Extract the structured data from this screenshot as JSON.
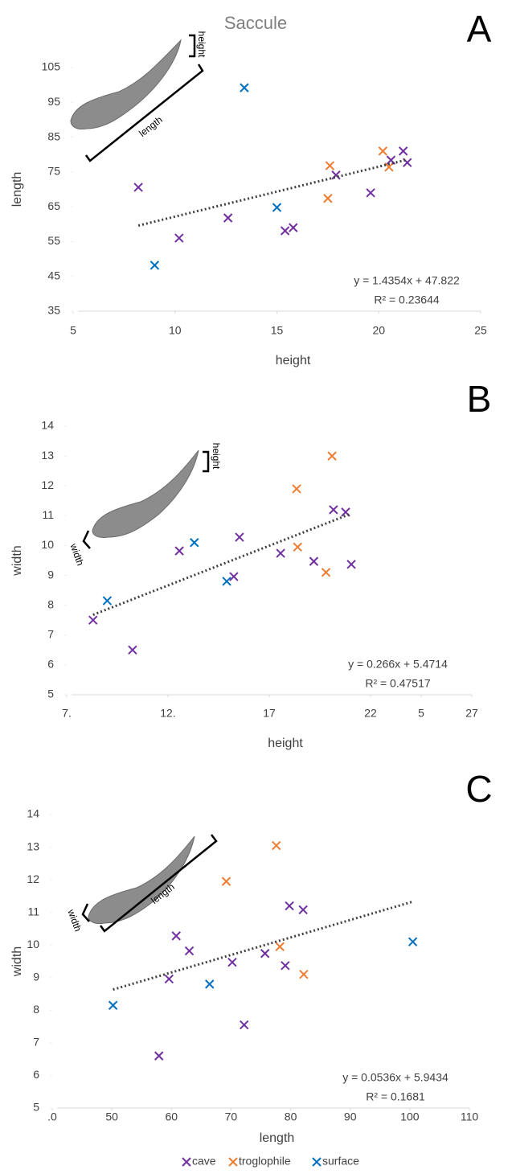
{
  "chart_data": [
    {
      "type": "scatter",
      "title": "Saccule",
      "panel": "A",
      "xlabel": "height",
      "ylabel": "length",
      "xlim": [
        5,
        25
      ],
      "ylim": [
        35,
        105
      ],
      "xticks": [
        5,
        10,
        15,
        20,
        25
      ],
      "yticks": [
        35,
        45,
        55,
        65,
        75,
        85,
        95,
        105
      ],
      "annotations": [
        "height",
        "length"
      ],
      "series": [
        {
          "name": "cave",
          "color": "#7030a0",
          "x": [
            8.2,
            10.2,
            12.6,
            15.4,
            15.8,
            17.9,
            19.6,
            20.6,
            21.2,
            21.4
          ],
          "y": [
            70.6,
            56,
            61.8,
            58.1,
            59,
            74.1,
            69,
            78.4,
            81,
            77.7
          ]
        },
        {
          "name": "troglophile",
          "color": "#ed7d31",
          "x": [
            17.6,
            17.5,
            20.2,
            20.5
          ],
          "y": [
            76.8,
            67.4,
            81,
            76.4
          ]
        },
        {
          "name": "surface",
          "color": "#0070c0",
          "x": [
            13.4,
            15,
            9
          ],
          "y": [
            99.2,
            64.8,
            48.2
          ]
        }
      ],
      "trendline": {
        "slope": 1.4354,
        "intercept": 47.822,
        "equation": "y = 1.4354x + 47.822",
        "r2": "R² = 0.23644"
      }
    },
    {
      "type": "scatter",
      "panel": "B",
      "xlabel": "height",
      "ylabel": "width",
      "xlim": [
        7,
        27
      ],
      "ylim": [
        5,
        14
      ],
      "xticks": [
        {
          "value": 7,
          "label": "7."
        },
        {
          "value": 12,
          "label": "12."
        },
        17,
        22,
        {
          "value": 24.5,
          "label": "5"
        },
        27
      ],
      "yticks": [
        5,
        6,
        7,
        8,
        9,
        10,
        11,
        12,
        13,
        14
      ],
      "annotations": [
        "height",
        "width"
      ],
      "series": [
        {
          "name": "cave",
          "color": "#7030a0",
          "x": [
            8.3,
            10.25,
            12.56,
            15.25,
            15.53,
            17.56,
            19.2,
            20.17,
            20.77,
            21.05
          ],
          "y": [
            7.5,
            6.5,
            9.82,
            8.96,
            10.28,
            9.74,
            9.47,
            11.2,
            11.12,
            9.37
          ]
        },
        {
          "name": "troglophile",
          "color": "#ed7d31",
          "x": [
            18.35,
            20.1,
            18.4,
            19.8
          ],
          "y": [
            11.9,
            13,
            9.95,
            9.1
          ]
        },
        {
          "name": "surface",
          "color": "#0070c0",
          "x": [
            9,
            13.3,
            14.9
          ],
          "y": [
            8.15,
            10.1,
            8.8
          ]
        }
      ],
      "trendline": {
        "slope": 0.266,
        "intercept": 5.4714,
        "equation": "y = 0.266x + 5.4714",
        "r2": "R² = 0.47517"
      }
    },
    {
      "type": "scatter",
      "panel": "C",
      "xlabel": "length",
      "ylabel": "width",
      "xlim": [
        40,
        110
      ],
      "ylim": [
        5,
        14
      ],
      "xticks": [
        {
          "value": 40,
          "label": ".0"
        },
        50,
        60,
        70,
        80,
        90,
        100,
        110
      ],
      "yticks": [
        5,
        6,
        7,
        8,
        9,
        10,
        11,
        12,
        13,
        14
      ],
      "annotations": [
        "width",
        "length"
      ],
      "series": [
        {
          "name": "cave",
          "color": "#7030a0",
          "x": [
            57.9,
            59.6,
            60.8,
            63,
            70.2,
            72.2,
            75.7,
            79.1,
            79.8,
            82.1
          ],
          "y": [
            6.6,
            8.96,
            10.28,
            9.82,
            9.47,
            7.55,
            9.74,
            9.37,
            11.2,
            11.08
          ]
        },
        {
          "name": "troglophile",
          "color": "#ed7d31",
          "x": [
            69.2,
            77.6,
            78.2,
            82.2
          ],
          "y": [
            11.95,
            13.05,
            9.95,
            9.1
          ]
        },
        {
          "name": "surface",
          "color": "#0070c0",
          "x": [
            50.2,
            66.4,
            100.5
          ],
          "y": [
            8.15,
            8.8,
            10.1
          ]
        }
      ],
      "trendline": {
        "slope": 0.0536,
        "intercept": 5.9434,
        "equation": "y = 0.0536x + 5.9434",
        "r2": "R² = 0.1681"
      }
    }
  ]
}
